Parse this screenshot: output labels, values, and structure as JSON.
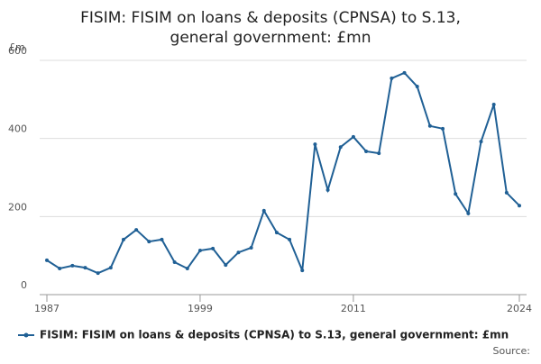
{
  "chart_data": {
    "type": "line",
    "title": "FISIM: FISIM on loans & deposits (CPNSA) to S.13, general government: £mn",
    "y_label": "£m",
    "source": "Source:",
    "x": [
      1987,
      1988,
      1989,
      1990,
      1991,
      1992,
      1993,
      1994,
      1995,
      1996,
      1997,
      1998,
      1999,
      2000,
      2001,
      2002,
      2003,
      2004,
      2005,
      2006,
      2007,
      2008,
      2009,
      2010,
      2011,
      2012,
      2013,
      2014,
      2015,
      2016,
      2017,
      2018,
      2019,
      2020,
      2021,
      2022,
      2023,
      2024
    ],
    "series": [
      {
        "name": "FISIM: FISIM on loans & deposits (CPNSA) to S.13, general government: £mn",
        "color": "#206095",
        "values": [
          88,
          67,
          74,
          69,
          55,
          69,
          141,
          166,
          136,
          141,
          83,
          67,
          113,
          118,
          76,
          108,
          120,
          215,
          159,
          141,
          62,
          385,
          268,
          378,
          404,
          367,
          362,
          554,
          568,
          533,
          432,
          425,
          258,
          208,
          392,
          487,
          261,
          228
        ]
      }
    ],
    "xlim": [
      1987,
      2024
    ],
    "xticks": [
      1987,
      1999,
      2011,
      2024
    ],
    "ylim": [
      0,
      600
    ],
    "yticks": [
      0,
      200,
      400,
      600
    ],
    "grid": true
  }
}
